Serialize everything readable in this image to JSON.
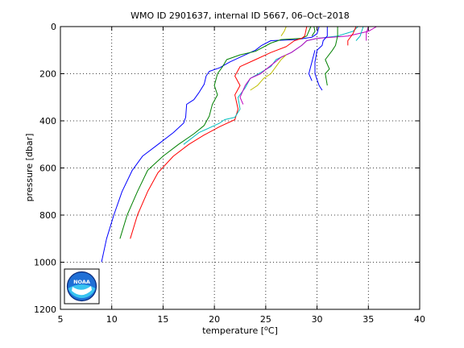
{
  "chart_data": {
    "type": "line",
    "title": "WMO ID 2901637, internal ID 5667, 06–Oct–2018",
    "xlabel_main": "temperature [",
    "xlabel_unit": "C]",
    "xlabel_degree": "o",
    "ylabel": "pressure [dbar]",
    "xlim": [
      5,
      40
    ],
    "ylim": [
      0,
      1200
    ],
    "y_reversed": true,
    "grid": true,
    "grid_style": "dotted",
    "x_ticks": [
      5,
      10,
      15,
      20,
      25,
      30,
      35,
      40
    ],
    "y_ticks": [
      0,
      200,
      400,
      600,
      800,
      1000,
      1200
    ],
    "logo": {
      "icon": "noaa-logo-icon",
      "text": "NOAA"
    },
    "series": [
      {
        "color": "#0000ff",
        "points": [
          [
            9.0,
            1000
          ],
          [
            9.5,
            900
          ],
          [
            10.2,
            800
          ],
          [
            11.0,
            700
          ],
          [
            12.0,
            610
          ],
          [
            13.0,
            550
          ],
          [
            14.5,
            500
          ],
          [
            16.0,
            450
          ],
          [
            17.0,
            410
          ],
          [
            17.2,
            385
          ],
          [
            17.3,
            330
          ],
          [
            18.0,
            310
          ],
          [
            18.5,
            280
          ],
          [
            19.0,
            245
          ],
          [
            19.2,
            210
          ],
          [
            19.5,
            190
          ],
          [
            20.5,
            175
          ],
          [
            21.5,
            150
          ],
          [
            23.0,
            120
          ],
          [
            24.0,
            100
          ],
          [
            24.6,
            80
          ],
          [
            25.5,
            60
          ],
          [
            28.0,
            55
          ],
          [
            29.5,
            45
          ],
          [
            30.0,
            30
          ],
          [
            30.2,
            0
          ]
        ]
      },
      {
        "color": "#008000",
        "points": [
          [
            10.8,
            900
          ],
          [
            11.5,
            800
          ],
          [
            12.5,
            700
          ],
          [
            13.5,
            610
          ],
          [
            15.0,
            550
          ],
          [
            16.5,
            500
          ],
          [
            18.0,
            455
          ],
          [
            19.0,
            420
          ],
          [
            19.5,
            380
          ],
          [
            19.8,
            330
          ],
          [
            20.3,
            290
          ],
          [
            20.0,
            250
          ],
          [
            20.3,
            200
          ],
          [
            20.8,
            170
          ],
          [
            21.2,
            140
          ],
          [
            22.5,
            120
          ],
          [
            24.0,
            105
          ],
          [
            25.5,
            70
          ],
          [
            26.5,
            55
          ],
          [
            28.5,
            50
          ],
          [
            29.0,
            40
          ],
          [
            29.4,
            0
          ]
        ]
      },
      {
        "color": "#ff0000",
        "points": [
          [
            11.8,
            900
          ],
          [
            12.5,
            800
          ],
          [
            13.5,
            700
          ],
          [
            14.5,
            620
          ],
          [
            16.0,
            550
          ],
          [
            17.5,
            500
          ],
          [
            19.0,
            460
          ],
          [
            20.5,
            425
          ],
          [
            22.0,
            395
          ],
          [
            22.3,
            350
          ],
          [
            22.0,
            290
          ],
          [
            22.5,
            250
          ],
          [
            22.0,
            210
          ],
          [
            22.5,
            170
          ],
          [
            24.0,
            140
          ],
          [
            25.5,
            110
          ],
          [
            27.0,
            85
          ],
          [
            27.8,
            60
          ],
          [
            28.5,
            50
          ],
          [
            28.8,
            40
          ],
          [
            29.0,
            0
          ]
        ]
      },
      {
        "color": "#00bfbf",
        "points": [
          [
            17.0,
            500
          ],
          [
            18.5,
            450
          ],
          [
            20.5,
            410
          ],
          [
            21.0,
            395
          ],
          [
            22.0,
            385
          ],
          [
            22.5,
            350
          ],
          [
            22.3,
            300
          ],
          [
            23.0,
            260
          ],
          [
            23.5,
            220
          ],
          [
            24.3,
            200
          ],
          [
            25.5,
            170
          ],
          [
            26.0,
            140
          ],
          [
            27.5,
            110
          ],
          [
            28.5,
            80
          ],
          [
            29.0,
            60
          ],
          [
            30.0,
            50
          ],
          [
            32.0,
            40
          ],
          [
            33.5,
            20
          ],
          [
            34.0,
            0
          ]
        ]
      },
      {
        "color": "#bf00bf",
        "points": [
          [
            22.8,
            330
          ],
          [
            22.5,
            300
          ],
          [
            23.0,
            250
          ],
          [
            23.5,
            220
          ],
          [
            24.5,
            200
          ],
          [
            25.5,
            165
          ],
          [
            26.5,
            130
          ],
          [
            27.5,
            110
          ],
          [
            28.5,
            80
          ],
          [
            29.0,
            60
          ],
          [
            30.0,
            50
          ],
          [
            33.0,
            40
          ],
          [
            35.0,
            20
          ],
          [
            35.8,
            0
          ]
        ]
      },
      {
        "color": "#bfbf00",
        "points": [
          [
            23.5,
            270
          ],
          [
            24.2,
            250
          ],
          [
            24.8,
            220
          ],
          [
            25.5,
            200
          ],
          [
            26.0,
            170
          ],
          [
            26.5,
            140
          ],
          [
            27.0,
            120
          ]
        ]
      },
      {
        "color": "#0000ff",
        "points": [
          [
            30.5,
            270
          ],
          [
            30.2,
            250
          ],
          [
            29.8,
            200
          ],
          [
            29.8,
            150
          ],
          [
            30.0,
            100
          ],
          [
            30.5,
            80
          ],
          [
            30.6,
            60
          ],
          [
            31.0,
            40
          ],
          [
            31.0,
            0
          ]
        ]
      },
      {
        "color": "#008000",
        "points": [
          [
            31.0,
            250
          ],
          [
            30.8,
            200
          ],
          [
            31.2,
            180
          ],
          [
            30.8,
            140
          ],
          [
            31.5,
            100
          ],
          [
            31.8,
            80
          ],
          [
            32.0,
            40
          ],
          [
            32.0,
            0
          ]
        ]
      },
      {
        "color": "#ff0000",
        "points": [
          [
            33.0,
            80
          ],
          [
            33.0,
            60
          ],
          [
            33.5,
            30
          ],
          [
            33.8,
            0
          ]
        ]
      },
      {
        "color": "#bf00bf",
        "points": [
          [
            34.8,
            60
          ],
          [
            34.8,
            30
          ],
          [
            35.0,
            0
          ]
        ]
      },
      {
        "color": "#bfbf00",
        "points": [
          [
            26.5,
            40
          ],
          [
            26.8,
            20
          ],
          [
            27.0,
            0
          ]
        ]
      },
      {
        "color": "#0000ff",
        "points": [
          [
            29.5,
            230
          ],
          [
            29.2,
            200
          ],
          [
            29.5,
            150
          ],
          [
            29.8,
            100
          ]
        ]
      },
      {
        "color": "#008000",
        "points": [
          [
            29.5,
            40
          ],
          [
            29.8,
            20
          ],
          [
            29.7,
            0
          ]
        ]
      },
      {
        "color": "#00bfbf",
        "points": [
          [
            33.8,
            60
          ],
          [
            34.2,
            40
          ],
          [
            34.5,
            0
          ]
        ]
      }
    ]
  }
}
